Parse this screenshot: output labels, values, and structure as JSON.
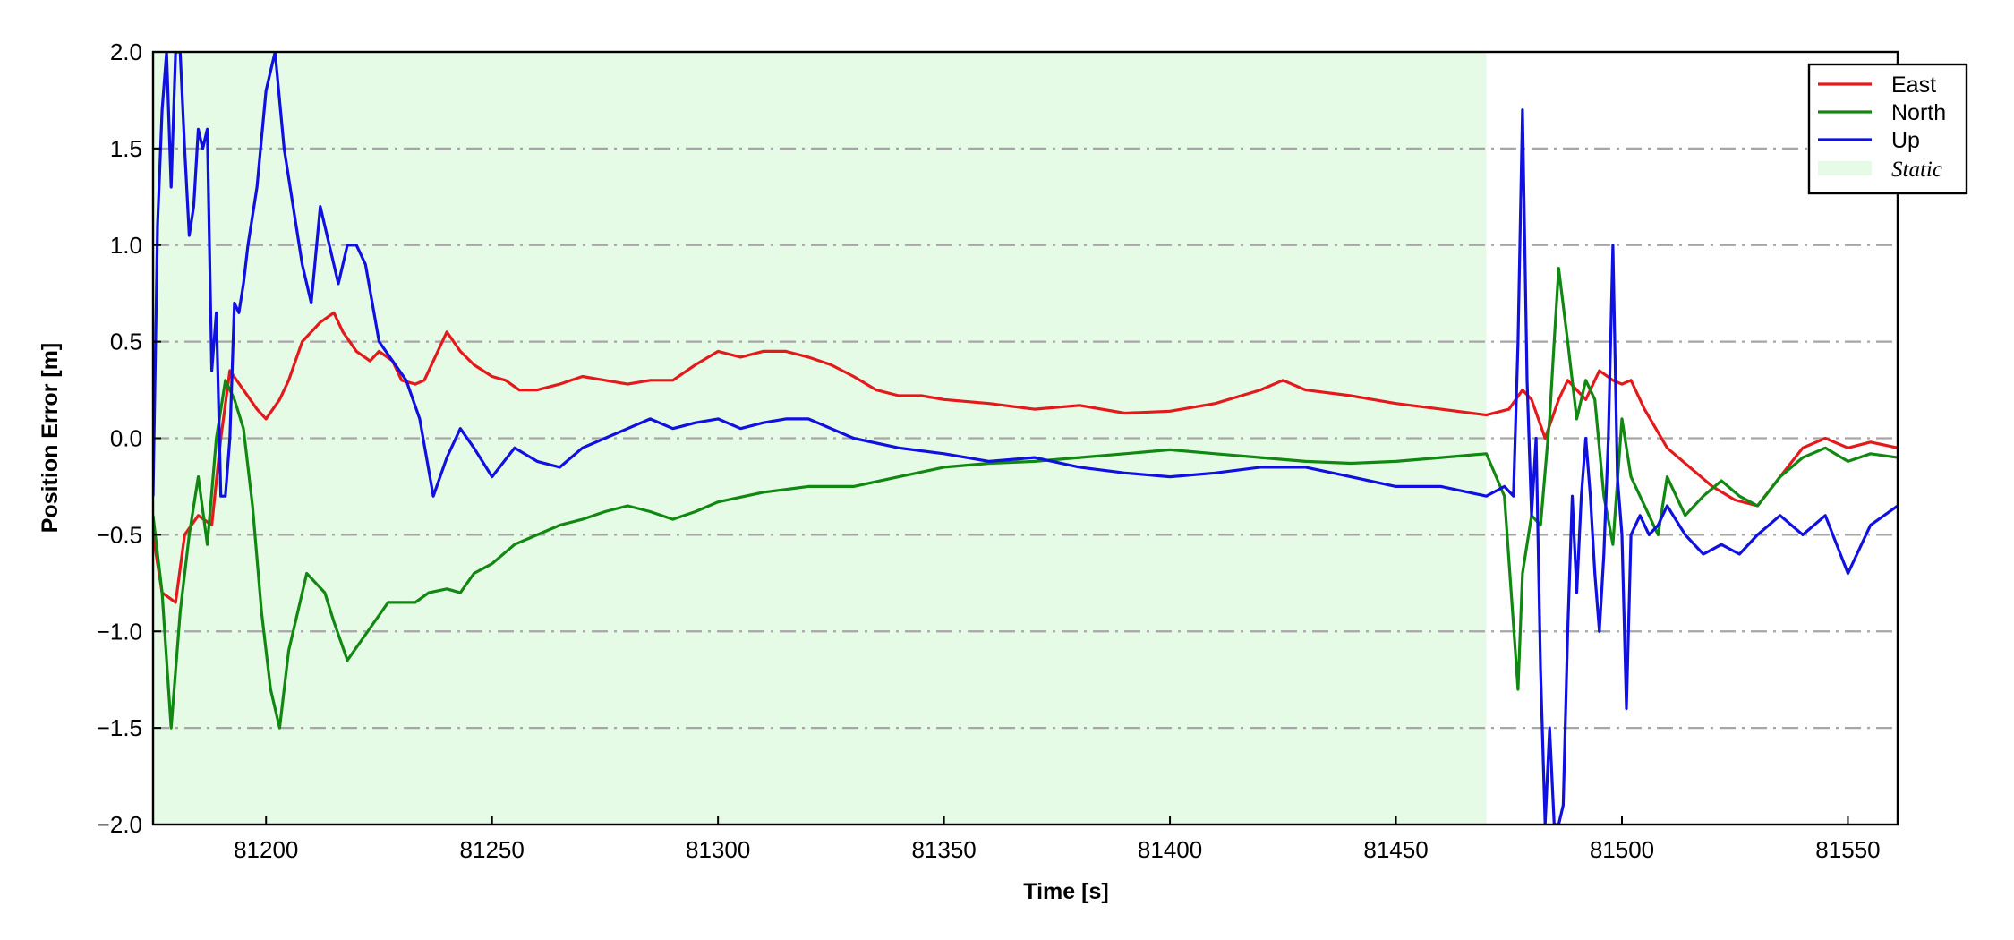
{
  "chart_data": {
    "type": "line",
    "xlabel": "Time [s]",
    "ylabel": "Position Error [m]",
    "xlim": [
      81175,
      81561
    ],
    "ylim": [
      -2.0,
      2.0
    ],
    "xticks": [
      81200,
      81250,
      81300,
      81350,
      81400,
      81450,
      81500,
      81550
    ],
    "xtick_labels": [
      "81200",
      "81250",
      "81300",
      "81350",
      "81400",
      "81450",
      "81500",
      "81550"
    ],
    "yticks": [
      2.0,
      1.5,
      1.0,
      0.5,
      0.0,
      -0.5,
      -1.0,
      -1.5,
      -2.0
    ],
    "ytick_labels": [
      "2.0",
      "1.5",
      "1.0",
      "0.5",
      "0.0",
      "−0.5",
      "−1.0",
      "−1.5",
      "−2.0"
    ],
    "grid": "horizontal dash-dot",
    "legend_placement": "top-right",
    "static_region": {
      "label": "Static",
      "x_start": 81175,
      "x_end": 81470,
      "color": "#e6fbe6"
    },
    "series": [
      {
        "name": "East",
        "color": "#e31a1c",
        "x": [
          81175,
          81177,
          81180,
          81182,
          81185,
          81188,
          81190,
          81192,
          81195,
          81198,
          81200,
          81203,
          81205,
          81208,
          81210,
          81212,
          81215,
          81217,
          81220,
          81223,
          81225,
          81228,
          81230,
          81233,
          81235,
          81238,
          81240,
          81243,
          81246,
          81250,
          81253,
          81256,
          81260,
          81265,
          81270,
          81275,
          81280,
          81285,
          81290,
          81295,
          81300,
          81305,
          81310,
          81315,
          81320,
          81325,
          81330,
          81335,
          81340,
          81345,
          81350,
          81360,
          81370,
          81380,
          81390,
          81400,
          81410,
          81420,
          81425,
          81430,
          81440,
          81450,
          81460,
          81470,
          81475,
          81478,
          81480,
          81483,
          81486,
          81488,
          81490,
          81492,
          81495,
          81498,
          81500,
          81502,
          81505,
          81510,
          81515,
          81520,
          81525,
          81530,
          81535,
          81540,
          81545,
          81550,
          81555,
          81561
        ],
        "y": [
          -0.5,
          -0.8,
          -0.85,
          -0.5,
          -0.4,
          -0.45,
          0.0,
          0.35,
          0.25,
          0.15,
          0.1,
          0.2,
          0.3,
          0.5,
          0.55,
          0.6,
          0.65,
          0.55,
          0.45,
          0.4,
          0.45,
          0.4,
          0.3,
          0.28,
          0.3,
          0.45,
          0.55,
          0.45,
          0.38,
          0.32,
          0.3,
          0.25,
          0.25,
          0.28,
          0.32,
          0.3,
          0.28,
          0.3,
          0.3,
          0.38,
          0.45,
          0.42,
          0.45,
          0.45,
          0.42,
          0.38,
          0.32,
          0.25,
          0.22,
          0.22,
          0.2,
          0.18,
          0.15,
          0.17,
          0.13,
          0.14,
          0.18,
          0.25,
          0.3,
          0.25,
          0.22,
          0.18,
          0.15,
          0.12,
          0.15,
          0.25,
          0.2,
          0.0,
          0.2,
          0.3,
          0.25,
          0.2,
          0.35,
          0.3,
          0.28,
          0.3,
          0.15,
          -0.05,
          -0.15,
          -0.25,
          -0.32,
          -0.35,
          -0.2,
          -0.05,
          0.0,
          -0.05,
          -0.02,
          -0.05
        ]
      },
      {
        "name": "North",
        "color": "#118811",
        "x": [
          81175,
          81177,
          81179,
          81181,
          81183,
          81185,
          81187,
          81189,
          81191,
          81193,
          81195,
          81197,
          81199,
          81201,
          81203,
          81205,
          81207,
          81209,
          81211,
          81213,
          81215,
          81218,
          81221,
          81224,
          81227,
          81230,
          81233,
          81236,
          81240,
          81243,
          81246,
          81250,
          81255,
          81260,
          81265,
          81270,
          81275,
          81280,
          81285,
          81290,
          81295,
          81300,
          81310,
          81320,
          81330,
          81340,
          81350,
          81360,
          81370,
          81380,
          81390,
          81400,
          81410,
          81420,
          81430,
          81440,
          81450,
          81460,
          81470,
          81474,
          81477,
          81478,
          81480,
          81482,
          81484,
          81485,
          81486,
          81488,
          81490,
          81492,
          81494,
          81496,
          81498,
          81500,
          81502,
          81504,
          81506,
          81508,
          81510,
          81514,
          81518,
          81522,
          81526,
          81530,
          81535,
          81540,
          81545,
          81550,
          81555,
          81561
        ],
        "y": [
          -0.4,
          -0.8,
          -1.5,
          -0.9,
          -0.5,
          -0.2,
          -0.55,
          0.0,
          0.3,
          0.2,
          0.05,
          -0.35,
          -0.9,
          -1.3,
          -1.5,
          -1.1,
          -0.9,
          -0.7,
          -0.75,
          -0.8,
          -0.95,
          -1.15,
          -1.05,
          -0.95,
          -0.85,
          -0.85,
          -0.85,
          -0.8,
          -0.78,
          -0.8,
          -0.7,
          -0.65,
          -0.55,
          -0.5,
          -0.45,
          -0.42,
          -0.38,
          -0.35,
          -0.38,
          -0.42,
          -0.38,
          -0.33,
          -0.28,
          -0.25,
          -0.25,
          -0.2,
          -0.15,
          -0.13,
          -0.12,
          -0.1,
          -0.08,
          -0.06,
          -0.08,
          -0.1,
          -0.12,
          -0.13,
          -0.12,
          -0.1,
          -0.08,
          -0.3,
          -1.3,
          -0.7,
          -0.4,
          -0.45,
          0.1,
          0.5,
          0.88,
          0.5,
          0.1,
          0.3,
          0.2,
          -0.3,
          -0.55,
          0.1,
          -0.2,
          -0.3,
          -0.4,
          -0.5,
          -0.2,
          -0.4,
          -0.3,
          -0.22,
          -0.3,
          -0.35,
          -0.2,
          -0.1,
          -0.05,
          -0.12,
          -0.08,
          -0.1
        ]
      },
      {
        "name": "Up",
        "color": "#1010e0",
        "x": [
          81175,
          81176,
          81177,
          81178,
          81179,
          81180,
          81181,
          81182,
          81183,
          81184,
          81185,
          81186,
          81187,
          81188,
          81189,
          81190,
          81191,
          81192,
          81193,
          81194,
          81195,
          81196,
          81198,
          81200,
          81202,
          81204,
          81206,
          81208,
          81210,
          81212,
          81214,
          81216,
          81218,
          81220,
          81222,
          81225,
          81228,
          81231,
          81234,
          81237,
          81240,
          81243,
          81246,
          81250,
          81255,
          81260,
          81265,
          81270,
          81275,
          81280,
          81285,
          81290,
          81295,
          81300,
          81305,
          81310,
          81315,
          81320,
          81325,
          81330,
          81340,
          81350,
          81360,
          81370,
          81380,
          81390,
          81400,
          81410,
          81420,
          81430,
          81440,
          81450,
          81460,
          81470,
          81474,
          81476,
          81477,
          81478,
          81479,
          81480,
          81481,
          81482,
          81483,
          81484,
          81485,
          81486,
          81487,
          81488,
          81489,
          81490,
          81491,
          81492,
          81493,
          81494,
          81495,
          81496,
          81497,
          81498,
          81499,
          81500,
          81501,
          81502,
          81504,
          81506,
          81508,
          81510,
          81514,
          81518,
          81522,
          81526,
          81530,
          81535,
          81540,
          81545,
          81550,
          81555,
          81561
        ],
        "y": [
          -0.3,
          1.1,
          1.7,
          2.0,
          1.3,
          2.0,
          2.0,
          1.5,
          1.05,
          1.2,
          1.6,
          1.5,
          1.6,
          0.35,
          0.65,
          -0.3,
          -0.3,
          0.0,
          0.7,
          0.65,
          0.8,
          1.0,
          1.3,
          1.8,
          2.0,
          1.5,
          1.2,
          0.9,
          0.7,
          1.2,
          1.0,
          0.8,
          1.0,
          1.0,
          0.9,
          0.5,
          0.4,
          0.3,
          0.1,
          -0.3,
          -0.1,
          0.05,
          -0.05,
          -0.2,
          -0.05,
          -0.12,
          -0.15,
          -0.05,
          0.0,
          0.05,
          0.1,
          0.05,
          0.08,
          0.1,
          0.05,
          0.08,
          0.1,
          0.1,
          0.05,
          0.0,
          -0.05,
          -0.08,
          -0.12,
          -0.1,
          -0.15,
          -0.18,
          -0.2,
          -0.18,
          -0.15,
          -0.15,
          -0.2,
          -0.25,
          -0.25,
          -0.3,
          -0.25,
          -0.3,
          0.5,
          1.7,
          0.3,
          -0.4,
          0.0,
          -1.2,
          -2.0,
          -1.5,
          -2.0,
          -2.0,
          -1.9,
          -1.0,
          -0.3,
          -0.8,
          -0.3,
          0.0,
          -0.3,
          -0.7,
          -1.0,
          -0.6,
          0.0,
          1.0,
          -0.2,
          -0.5,
          -1.4,
          -0.5,
          -0.4,
          -0.5,
          -0.45,
          -0.35,
          -0.5,
          -0.6,
          -0.55,
          -0.6,
          -0.5,
          -0.4,
          -0.5,
          -0.4,
          -0.7,
          -0.45,
          -0.35
        ]
      }
    ]
  }
}
